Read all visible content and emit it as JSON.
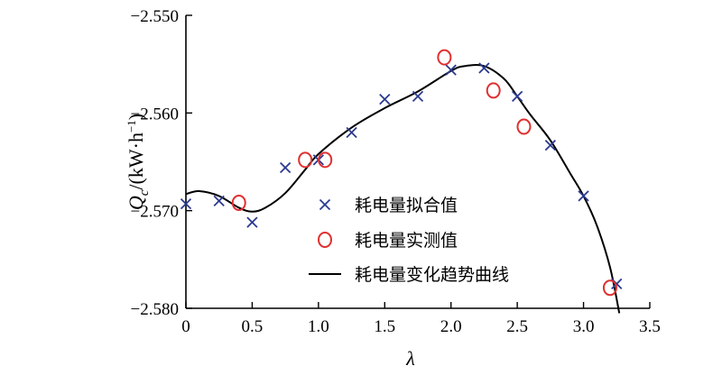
{
  "chart_data": {
    "type": "scatter",
    "xlabel": "λ",
    "ylabel": "Qc/(kW·h⁻¹)",
    "ylabel_parts": {
      "var": "Q",
      "sub": "c",
      "unit_open": "/(kW·h",
      "sup": "−1",
      "unit_close": ")"
    },
    "xlim": [
      0,
      3.5
    ],
    "ylim": [
      -2.58,
      -2.55
    ],
    "x_ticks": [
      0,
      0.5,
      1.0,
      1.5,
      2.0,
      2.5,
      3.0,
      3.5
    ],
    "x_tick_labels": [
      "0",
      "0.5",
      "1.0",
      "1.5",
      "2.0",
      "2.5",
      "3.0",
      "3.5"
    ],
    "y_ticks": [
      -2.58,
      -2.57,
      -2.56,
      -2.55
    ],
    "y_tick_labels": [
      "−2.580",
      "−2.570",
      "−2.560",
      "−2.550"
    ],
    "grid": false,
    "legend_position": "center-right",
    "series": [
      {
        "name": "耗电量拟合值",
        "marker": "x",
        "color": "#2b3a8f",
        "points": [
          [
            0,
            -2.5693
          ],
          [
            0.25,
            -2.569
          ],
          [
            0.5,
            -2.5712
          ],
          [
            0.75,
            -2.5656
          ],
          [
            1.0,
            -2.5648
          ],
          [
            1.25,
            -2.562
          ],
          [
            1.5,
            -2.5586
          ],
          [
            1.75,
            -2.5583
          ],
          [
            2.0,
            -2.5556
          ],
          [
            2.25,
            -2.5554
          ],
          [
            2.5,
            -2.5583
          ],
          [
            2.75,
            -2.5633
          ],
          [
            3.0,
            -2.5685
          ],
          [
            3.25,
            -2.5775
          ]
        ]
      },
      {
        "name": "耗电量实测值",
        "marker": "circle",
        "color": "#e03030",
        "points": [
          [
            0.4,
            -2.5692
          ],
          [
            0.9,
            -2.5648
          ],
          [
            1.05,
            -2.5648
          ],
          [
            1.95,
            -2.5543
          ],
          [
            2.32,
            -2.5577
          ],
          [
            2.55,
            -2.5614
          ],
          [
            3.2,
            -2.5779
          ]
        ]
      },
      {
        "name": "耗电量变化趋势曲线",
        "marker": "line",
        "color": "#000000",
        "points": [
          [
            0,
            -2.5683
          ],
          [
            0.1,
            -2.568
          ],
          [
            0.25,
            -2.5685
          ],
          [
            0.4,
            -2.5697
          ],
          [
            0.5,
            -2.5701
          ],
          [
            0.6,
            -2.5697
          ],
          [
            0.75,
            -2.5682
          ],
          [
            0.9,
            -2.5658
          ],
          [
            1.0,
            -2.5642
          ],
          [
            1.25,
            -2.5615
          ],
          [
            1.5,
            -2.5595
          ],
          [
            1.75,
            -2.5578
          ],
          [
            2.0,
            -2.5557
          ],
          [
            2.1,
            -2.5552
          ],
          [
            2.25,
            -2.5552
          ],
          [
            2.4,
            -2.5565
          ],
          [
            2.5,
            -2.5583
          ],
          [
            2.6,
            -2.5602
          ],
          [
            2.75,
            -2.5628
          ],
          [
            2.9,
            -2.5662
          ],
          [
            3.0,
            -2.5685
          ],
          [
            3.1,
            -2.5715
          ],
          [
            3.2,
            -2.5758
          ],
          [
            3.27,
            -2.5805
          ]
        ]
      }
    ]
  }
}
